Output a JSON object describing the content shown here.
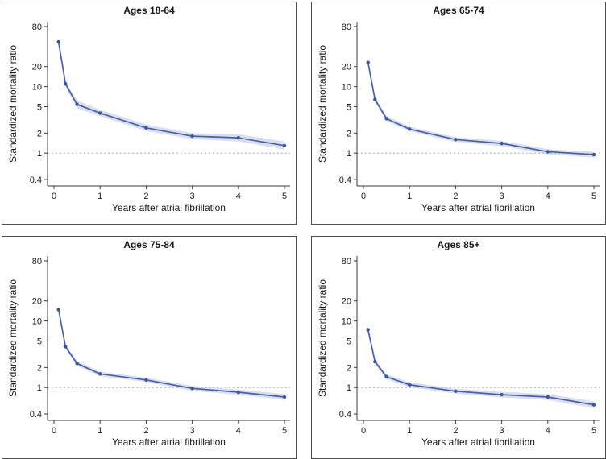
{
  "style": {
    "line_color": "#4a5fa5",
    "marker_color": "#3f54a0",
    "band_color": "#b9c4e0",
    "ref_line_color": "#ababab",
    "axis_color": "#383838",
    "text_color": "#1a1a1a",
    "panel_border_color": "#4d4d4d",
    "background_color": "#ffffff"
  },
  "chart_data": [
    {
      "type": "line",
      "title": "Ages 18-64",
      "xlabel": "Years after atrial fibrillation",
      "ylabel": "Standardized mortality ratio",
      "yscale": "log",
      "legend": "none",
      "grid": "off",
      "ref_line": 1,
      "xticks": [
        0,
        1,
        2,
        3,
        4,
        5
      ],
      "yticks": [
        80,
        20,
        10,
        5,
        2,
        1,
        0.4
      ],
      "ylim": [
        0.32,
        95
      ],
      "x": [
        0.1,
        0.25,
        0.5,
        1,
        2,
        3,
        4,
        5
      ],
      "smr": [
        47,
        11,
        5.4,
        4.0,
        2.4,
        1.8,
        1.7,
        1.3
      ],
      "band_low": [
        44,
        10.2,
        4.7,
        3.6,
        2.15,
        1.62,
        1.5,
        1.13
      ],
      "band_high": [
        50,
        11.9,
        6.2,
        4.5,
        2.7,
        2.0,
        1.92,
        1.5
      ]
    },
    {
      "type": "line",
      "title": "Ages 65-74",
      "xlabel": "Years after atrial fibrillation",
      "ylabel": "Standardized mortality ratio",
      "yscale": "log",
      "legend": "none",
      "grid": "off",
      "ref_line": 1,
      "xticks": [
        0,
        1,
        2,
        3,
        4,
        5
      ],
      "yticks": [
        80,
        20,
        10,
        5,
        2,
        1,
        0.4
      ],
      "ylim": [
        0.32,
        95
      ],
      "x": [
        0.1,
        0.25,
        0.5,
        1,
        2,
        3,
        4,
        5
      ],
      "smr": [
        23,
        6.4,
        3.3,
        2.3,
        1.6,
        1.4,
        1.05,
        0.95
      ],
      "band_low": [
        21.4,
        5.9,
        3.0,
        2.13,
        1.47,
        1.28,
        0.96,
        0.86
      ],
      "band_high": [
        24.7,
        7.0,
        3.65,
        2.5,
        1.74,
        1.53,
        1.15,
        1.05
      ]
    },
    {
      "type": "line",
      "title": "Ages 75-84",
      "xlabel": "Years after atrial fibrillation",
      "ylabel": "Standardized mortality ratio",
      "yscale": "log",
      "legend": "none",
      "grid": "off",
      "ref_line": 1,
      "xticks": [
        0,
        1,
        2,
        3,
        4,
        5
      ],
      "yticks": [
        80,
        20,
        10,
        5,
        2,
        1,
        0.4
      ],
      "ylim": [
        0.32,
        95
      ],
      "x": [
        0.1,
        0.25,
        0.5,
        1,
        2,
        3,
        4,
        5
      ],
      "smr": [
        14.8,
        4.1,
        2.3,
        1.6,
        1.3,
        0.97,
        0.85,
        0.72
      ],
      "band_low": [
        13.9,
        3.8,
        2.12,
        1.48,
        1.21,
        0.89,
        0.78,
        0.65
      ],
      "band_high": [
        15.8,
        4.4,
        2.5,
        1.73,
        1.4,
        1.06,
        0.93,
        0.8
      ]
    },
    {
      "type": "line",
      "title": "Ages 85+",
      "xlabel": "Years after atrial fibrillation",
      "ylabel": "Standardized mortality ratio",
      "yscale": "log",
      "legend": "none",
      "grid": "off",
      "ref_line": 1,
      "xticks": [
        0,
        1,
        2,
        3,
        4,
        5
      ],
      "yticks": [
        80,
        20,
        10,
        5,
        2,
        1,
        0.4
      ],
      "ylim": [
        0.32,
        95
      ],
      "x": [
        0.1,
        0.25,
        0.5,
        1,
        2,
        3,
        4,
        5
      ],
      "smr": [
        7.4,
        2.45,
        1.45,
        1.1,
        0.88,
        0.78,
        0.72,
        0.55
      ],
      "band_low": [
        6.95,
        2.26,
        1.33,
        1.01,
        0.81,
        0.71,
        0.65,
        0.49
      ],
      "band_high": [
        7.9,
        2.66,
        1.58,
        1.2,
        0.96,
        0.86,
        0.8,
        0.62
      ]
    }
  ]
}
